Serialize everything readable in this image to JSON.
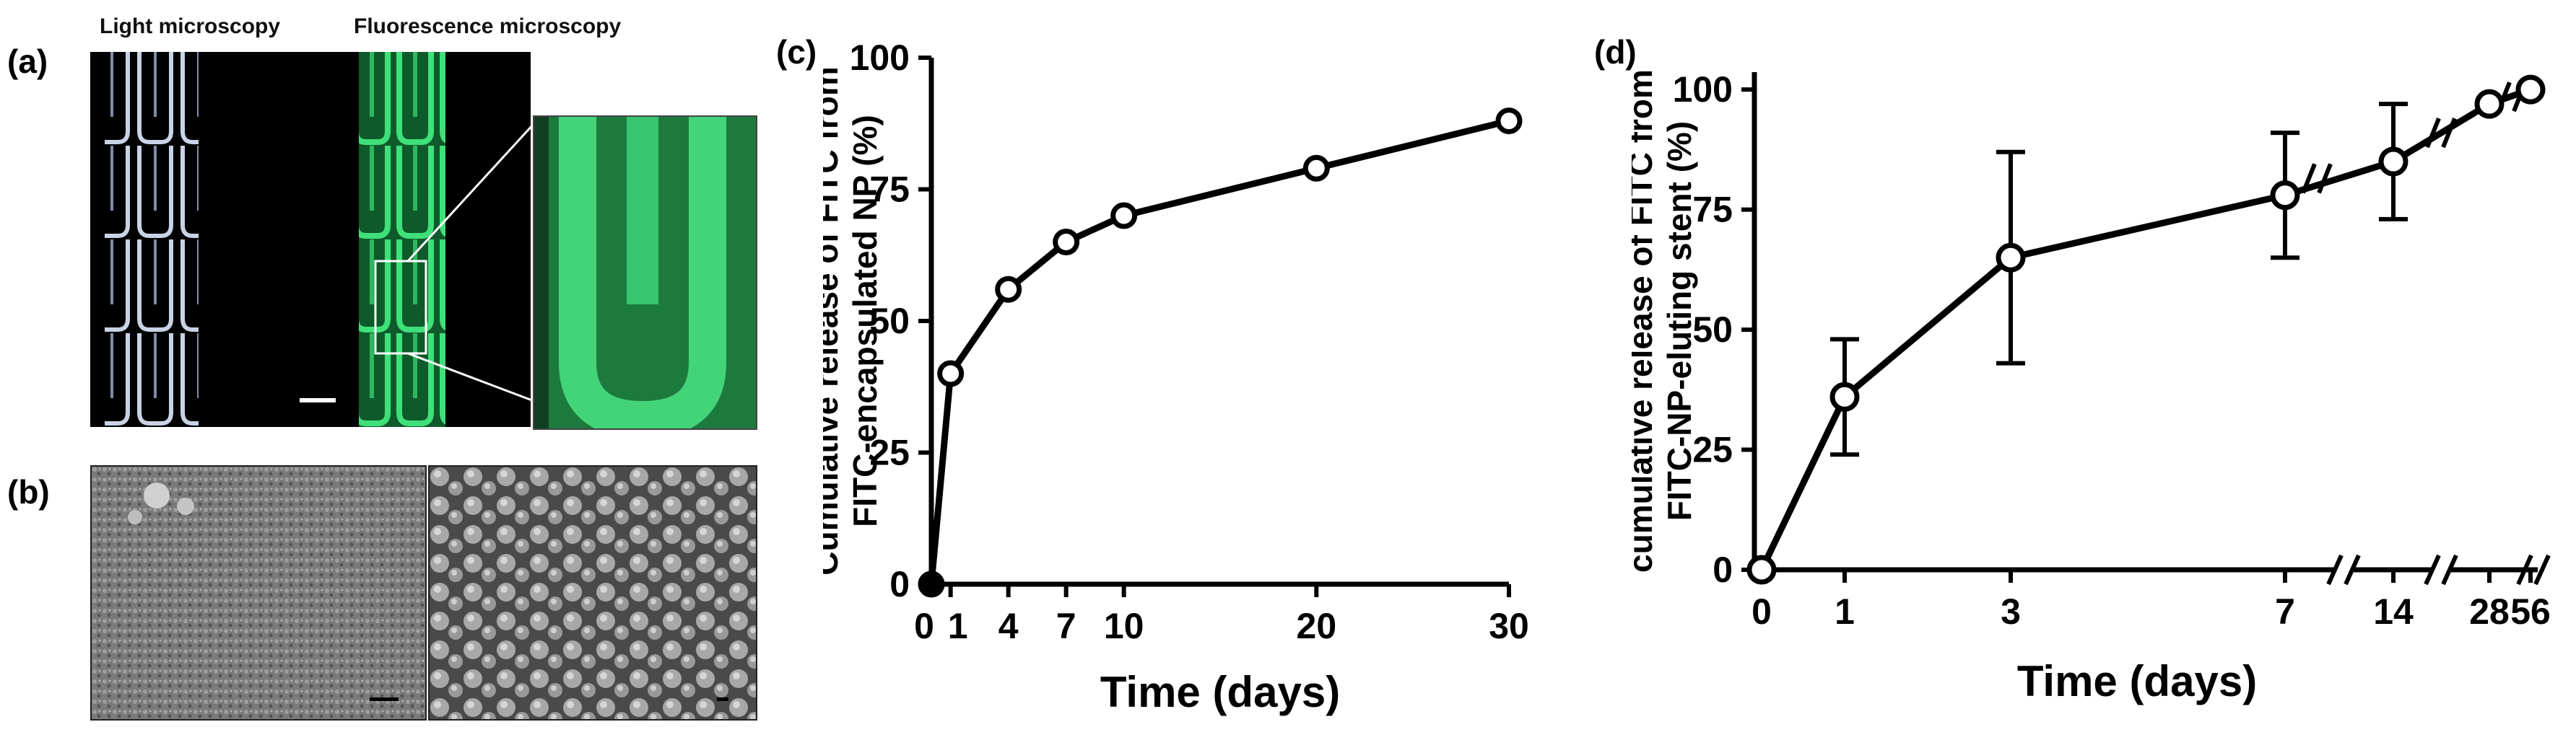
{
  "panel_a": {
    "label": "(a)",
    "light_title": "Light microscopy",
    "fluor_title": "Fluorescence microscopy"
  },
  "panel_b": {
    "label": "(b)"
  },
  "panel_c": {
    "label": "(c)",
    "chart_data": {
      "type": "line",
      "title": "",
      "xlabel": "Time (days)",
      "ylabel_lines": [
        "Cumulative release of FITC from",
        "FITC-encapsulated NP (%)"
      ],
      "x": [
        0,
        1,
        4,
        7,
        10,
        20,
        30
      ],
      "series": [
        {
          "values": [
            0,
            40,
            56,
            65,
            70,
            79,
            88
          ]
        }
      ],
      "x_ticks": [
        0,
        1,
        4,
        7,
        10,
        20,
        30
      ],
      "x_tick_labels": [
        "0",
        "1",
        "4",
        "7",
        "10",
        "20",
        "30"
      ],
      "y_ticks": [
        0,
        25,
        50,
        75,
        100
      ],
      "y_tick_labels": [
        "0",
        "25",
        "50",
        "75",
        "100"
      ],
      "xlim": [
        0,
        30
      ],
      "ylim": [
        0,
        100
      ],
      "grid": false,
      "marker_color": "#ffffff",
      "line_color": "#000000"
    }
  },
  "panel_d": {
    "label": "(d)",
    "chart_data": {
      "type": "line",
      "title": "",
      "xlabel": "Time (days)",
      "ylabel_lines": [
        "cumulative release of FITC from",
        "FITC-NP-eluting stent (%)"
      ],
      "x": [
        0,
        1,
        3,
        7,
        14,
        28,
        56
      ],
      "x_tick_labels": [
        "0",
        "1",
        "3",
        "7",
        "14",
        "28",
        "56"
      ],
      "series": [
        {
          "values": [
            0,
            36,
            65,
            78,
            85,
            97,
            100
          ],
          "error": [
            0,
            12,
            22,
            13,
            12,
            0,
            0
          ]
        }
      ],
      "y_ticks": [
        0,
        25,
        50,
        75,
        100
      ],
      "y_tick_labels": [
        "0",
        "25",
        "50",
        "75",
        "100"
      ],
      "ylim": [
        0,
        100
      ],
      "axis_breaks": [
        "between 7 and 14",
        "between 14 and 28",
        "between 28 and 56"
      ],
      "grid": false
    }
  }
}
